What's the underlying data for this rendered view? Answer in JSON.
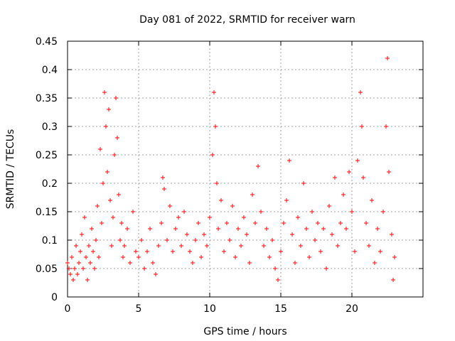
{
  "chart_data": {
    "type": "scatter",
    "title": "Day 081 of 2022, SRMTID for receiver warn",
    "xlabel": "GPS time / hours",
    "ylabel": "SRMTID / TECUs",
    "xlim": [
      0,
      25
    ],
    "ylim": [
      0,
      0.45
    ],
    "xticks": [
      0,
      5,
      10,
      15,
      20
    ],
    "xtick_labels": [
      "0",
      "5",
      "10",
      "15",
      "20"
    ],
    "yticks": [
      0,
      0.05,
      0.1,
      0.15,
      0.2,
      0.25,
      0.3,
      0.35,
      0.4,
      0.45
    ],
    "ytick_labels": [
      "0",
      "0.05",
      "0.1",
      "0.15",
      "0.2",
      "0.25",
      "0.3",
      "0.35",
      "0.4",
      "0.45"
    ],
    "grid": true,
    "marker": "+",
    "color": "#ff0000",
    "series": [
      {
        "name": "SRMTID",
        "points": [
          [
            0.0,
            0.06
          ],
          [
            0.1,
            0.05
          ],
          [
            0.2,
            0.04
          ],
          [
            0.3,
            0.07
          ],
          [
            0.4,
            0.03
          ],
          [
            0.5,
            0.05
          ],
          [
            0.6,
            0.09
          ],
          [
            0.7,
            0.04
          ],
          [
            0.8,
            0.06
          ],
          [
            0.9,
            0.08
          ],
          [
            1.0,
            0.11
          ],
          [
            1.1,
            0.05
          ],
          [
            1.2,
            0.14
          ],
          [
            1.3,
            0.07
          ],
          [
            1.4,
            0.03
          ],
          [
            1.5,
            0.09
          ],
          [
            1.6,
            0.06
          ],
          [
            1.7,
            0.12
          ],
          [
            1.8,
            0.08
          ],
          [
            1.9,
            0.05
          ],
          [
            2.0,
            0.1
          ],
          [
            2.1,
            0.16
          ],
          [
            2.2,
            0.07
          ],
          [
            2.3,
            0.26
          ],
          [
            2.4,
            0.13
          ],
          [
            2.5,
            0.2
          ],
          [
            2.6,
            0.36
          ],
          [
            2.7,
            0.3
          ],
          [
            2.8,
            0.22
          ],
          [
            2.9,
            0.33
          ],
          [
            3.0,
            0.17
          ],
          [
            3.1,
            0.09
          ],
          [
            3.2,
            0.14
          ],
          [
            3.3,
            0.25
          ],
          [
            3.4,
            0.35
          ],
          [
            3.5,
            0.28
          ],
          [
            3.6,
            0.18
          ],
          [
            3.7,
            0.1
          ],
          [
            3.8,
            0.13
          ],
          [
            3.9,
            0.07
          ],
          [
            4.0,
            0.09
          ],
          [
            4.2,
            0.12
          ],
          [
            4.4,
            0.06
          ],
          [
            4.6,
            0.15
          ],
          [
            4.8,
            0.08
          ],
          [
            5.0,
            0.07
          ],
          [
            5.2,
            0.1
          ],
          [
            5.4,
            0.05
          ],
          [
            5.6,
            0.08
          ],
          [
            5.8,
            0.12
          ],
          [
            6.0,
            0.06
          ],
          [
            6.2,
            0.04
          ],
          [
            6.4,
            0.09
          ],
          [
            6.6,
            0.13
          ],
          [
            6.7,
            0.21
          ],
          [
            6.8,
            0.19
          ],
          [
            7.0,
            0.1
          ],
          [
            7.2,
            0.16
          ],
          [
            7.4,
            0.08
          ],
          [
            7.6,
            0.12
          ],
          [
            7.8,
            0.14
          ],
          [
            8.0,
            0.09
          ],
          [
            8.2,
            0.15
          ],
          [
            8.4,
            0.11
          ],
          [
            8.6,
            0.08
          ],
          [
            8.8,
            0.06
          ],
          [
            9.0,
            0.1
          ],
          [
            9.2,
            0.13
          ],
          [
            9.4,
            0.07
          ],
          [
            9.6,
            0.11
          ],
          [
            9.8,
            0.09
          ],
          [
            10.0,
            0.14
          ],
          [
            10.2,
            0.25
          ],
          [
            10.3,
            0.36
          ],
          [
            10.4,
            0.3
          ],
          [
            10.5,
            0.2
          ],
          [
            10.6,
            0.12
          ],
          [
            10.8,
            0.17
          ],
          [
            11.0,
            0.08
          ],
          [
            11.2,
            0.13
          ],
          [
            11.4,
            0.1
          ],
          [
            11.6,
            0.16
          ],
          [
            11.8,
            0.07
          ],
          [
            12.0,
            0.12
          ],
          [
            12.2,
            0.09
          ],
          [
            12.4,
            0.14
          ],
          [
            12.6,
            0.11
          ],
          [
            12.8,
            0.06
          ],
          [
            13.0,
            0.18
          ],
          [
            13.2,
            0.13
          ],
          [
            13.4,
            0.23
          ],
          [
            13.6,
            0.15
          ],
          [
            13.8,
            0.09
          ],
          [
            14.0,
            0.12
          ],
          [
            14.2,
            0.07
          ],
          [
            14.4,
            0.1
          ],
          [
            14.6,
            0.05
          ],
          [
            14.8,
            0.03
          ],
          [
            15.0,
            0.08
          ],
          [
            15.2,
            0.13
          ],
          [
            15.4,
            0.17
          ],
          [
            15.6,
            0.24
          ],
          [
            15.8,
            0.11
          ],
          [
            16.0,
            0.06
          ],
          [
            16.2,
            0.14
          ],
          [
            16.4,
            0.09
          ],
          [
            16.6,
            0.2
          ],
          [
            16.8,
            0.12
          ],
          [
            17.0,
            0.07
          ],
          [
            17.2,
            0.15
          ],
          [
            17.4,
            0.1
          ],
          [
            17.6,
            0.13
          ],
          [
            17.8,
            0.08
          ],
          [
            18.0,
            0.12
          ],
          [
            18.2,
            0.05
          ],
          [
            18.4,
            0.16
          ],
          [
            18.6,
            0.11
          ],
          [
            18.8,
            0.21
          ],
          [
            19.0,
            0.09
          ],
          [
            19.2,
            0.13
          ],
          [
            19.4,
            0.18
          ],
          [
            19.6,
            0.12
          ],
          [
            19.8,
            0.22
          ],
          [
            20.0,
            0.15
          ],
          [
            20.2,
            0.08
          ],
          [
            20.4,
            0.24
          ],
          [
            20.6,
            0.36
          ],
          [
            20.7,
            0.3
          ],
          [
            20.8,
            0.21
          ],
          [
            21.0,
            0.13
          ],
          [
            21.2,
            0.09
          ],
          [
            21.4,
            0.17
          ],
          [
            21.6,
            0.06
          ],
          [
            21.8,
            0.12
          ],
          [
            22.0,
            0.08
          ],
          [
            22.2,
            0.15
          ],
          [
            22.4,
            0.3
          ],
          [
            22.5,
            0.42
          ],
          [
            22.6,
            0.22
          ],
          [
            22.8,
            0.11
          ],
          [
            22.9,
            0.03
          ],
          [
            23.0,
            0.07
          ]
        ]
      }
    ]
  }
}
